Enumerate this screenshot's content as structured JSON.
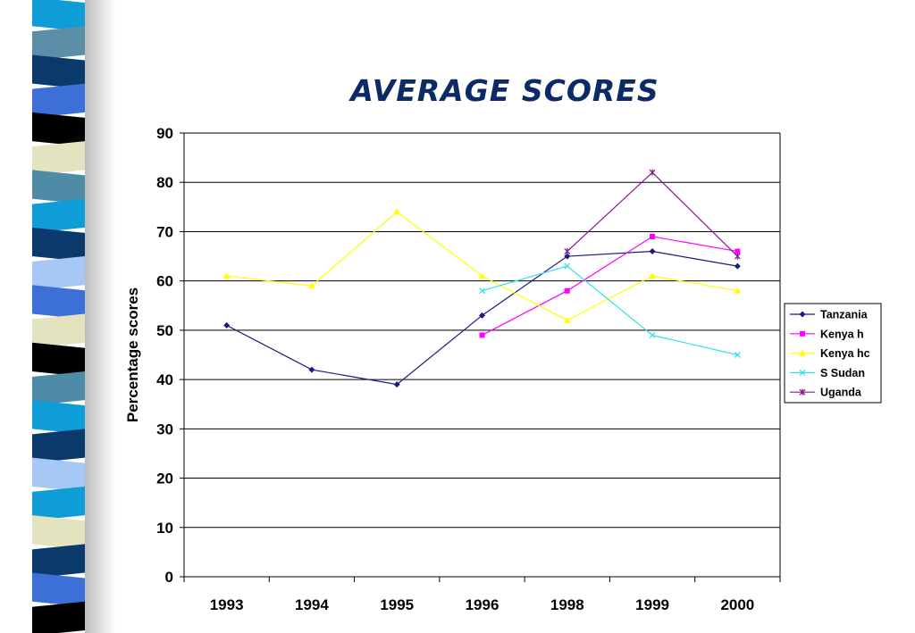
{
  "slide": {
    "strip_colors": [
      "#0f9dd8",
      "#5b8fa8",
      "#0a3a6c",
      "#3d6fd8",
      "#000000",
      "#e3e3c0",
      "#4e8ba6",
      "#0f9dd8",
      "#0a3a6c",
      "#a7c8f5",
      "#3d6fd8",
      "#e3e3c0",
      "#000000",
      "#4e8ba6",
      "#0f9dd8",
      "#0a3a6c",
      "#a7c8f5",
      "#0f9dd8",
      "#e3e3c0",
      "#0a3a6c",
      "#3d6fd8",
      "#000000"
    ]
  },
  "chart_data": {
    "type": "line",
    "title": "AVERAGE SCORES",
    "xlabel": "",
    "ylabel": "Percentage scores",
    "categories": [
      "1993",
      "1994",
      "1995",
      "1996",
      "1998",
      "1999",
      "2000"
    ],
    "ylim": [
      0,
      90
    ],
    "yticks": [
      "0",
      "10",
      "20",
      "30",
      "40",
      "50",
      "60",
      "70",
      "80",
      "90"
    ],
    "grid": true,
    "legend_position": "right",
    "series": [
      {
        "name": "Tanzania",
        "color": "#1a1a80",
        "marker": "diamond",
        "values": [
          51,
          42,
          39,
          53,
          65,
          66,
          63
        ]
      },
      {
        "name": "Kenya h",
        "color": "#ff00ff",
        "marker": "square",
        "values": [
          null,
          null,
          null,
          49,
          58,
          69,
          66
        ]
      },
      {
        "name": "Kenya hc",
        "color": "#ffff00",
        "marker": "triangle",
        "values": [
          61,
          59,
          74,
          61,
          52,
          61,
          58
        ]
      },
      {
        "name": "S Sudan",
        "color": "#33e0e8",
        "marker": "x",
        "values": [
          null,
          null,
          null,
          58,
          63,
          49,
          45
        ]
      },
      {
        "name": "Uganda",
        "color": "#8a1a8a",
        "marker": "star",
        "values": [
          null,
          null,
          null,
          null,
          66,
          82,
          65
        ]
      }
    ]
  }
}
